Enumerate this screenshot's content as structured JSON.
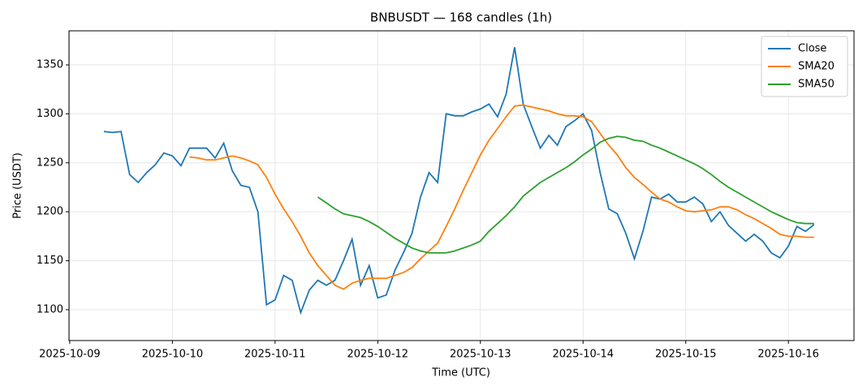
{
  "chart_data": {
    "type": "line",
    "title": "BNBUSDT — 168 candles (1h)",
    "xlabel": "Time (UTC)",
    "ylabel": "Price (USDT)",
    "x": [
      "2025-10-09 08:00",
      "2025-10-09 10:00",
      "2025-10-09 12:00",
      "2025-10-09 14:00",
      "2025-10-09 16:00",
      "2025-10-09 18:00",
      "2025-10-09 20:00",
      "2025-10-09 22:00",
      "2025-10-10 00:00",
      "2025-10-10 02:00",
      "2025-10-10 04:00",
      "2025-10-10 06:00",
      "2025-10-10 08:00",
      "2025-10-10 10:00",
      "2025-10-10 12:00",
      "2025-10-10 14:00",
      "2025-10-10 16:00",
      "2025-10-10 18:00",
      "2025-10-10 20:00",
      "2025-10-10 22:00",
      "2025-10-11 00:00",
      "2025-10-11 02:00",
      "2025-10-11 04:00",
      "2025-10-11 06:00",
      "2025-10-11 08:00",
      "2025-10-11 10:00",
      "2025-10-11 12:00",
      "2025-10-11 14:00",
      "2025-10-11 16:00",
      "2025-10-11 18:00",
      "2025-10-11 20:00",
      "2025-10-11 22:00",
      "2025-10-12 00:00",
      "2025-10-12 02:00",
      "2025-10-12 04:00",
      "2025-10-12 06:00",
      "2025-10-12 08:00",
      "2025-10-12 10:00",
      "2025-10-12 12:00",
      "2025-10-12 14:00",
      "2025-10-12 16:00",
      "2025-10-12 18:00",
      "2025-10-12 20:00",
      "2025-10-12 22:00",
      "2025-10-13 00:00",
      "2025-10-13 02:00",
      "2025-10-13 04:00",
      "2025-10-13 06:00",
      "2025-10-13 08:00",
      "2025-10-13 10:00",
      "2025-10-13 12:00",
      "2025-10-13 14:00",
      "2025-10-13 16:00",
      "2025-10-13 18:00",
      "2025-10-13 20:00",
      "2025-10-13 22:00",
      "2025-10-14 00:00",
      "2025-10-14 02:00",
      "2025-10-14 04:00",
      "2025-10-14 06:00",
      "2025-10-14 08:00",
      "2025-10-14 10:00",
      "2025-10-14 12:00",
      "2025-10-14 14:00",
      "2025-10-14 16:00",
      "2025-10-14 18:00",
      "2025-10-14 20:00",
      "2025-10-14 22:00",
      "2025-10-15 00:00",
      "2025-10-15 02:00",
      "2025-10-15 04:00",
      "2025-10-15 06:00",
      "2025-10-15 08:00",
      "2025-10-15 10:00",
      "2025-10-15 12:00",
      "2025-10-15 14:00",
      "2025-10-15 16:00",
      "2025-10-15 18:00",
      "2025-10-15 20:00",
      "2025-10-15 22:00",
      "2025-10-16 00:00",
      "2025-10-16 02:00",
      "2025-10-16 04:00",
      "2025-10-16 06:00"
    ],
    "series": [
      {
        "name": "Close",
        "color": "#1f77b4",
        "values": [
          1282,
          1281,
          1282,
          1238,
          1230,
          1240,
          1248,
          1260,
          1257,
          1247,
          1265,
          1265,
          1265,
          1255,
          1270,
          1242,
          1227,
          1225,
          1200,
          1105,
          1110,
          1135,
          1130,
          1097,
          1120,
          1130,
          1125,
          1130,
          1150,
          1172,
          1125,
          1145,
          1112,
          1115,
          1140,
          1158,
          1178,
          1215,
          1240,
          1230,
          1300,
          1298,
          1298,
          1302,
          1305,
          1310,
          1297,
          1320,
          1368,
          1310,
          1287,
          1265,
          1278,
          1268,
          1287,
          1293,
          1300,
          1283,
          1240,
          1203,
          1198,
          1178,
          1152,
          1180,
          1215,
          1213,
          1218,
          1210,
          1210,
          1215,
          1208,
          1190,
          1200,
          1186,
          1178,
          1170,
          1177,
          1170,
          1158,
          1153,
          1165,
          1185,
          1180,
          1187
        ]
      },
      {
        "name": "SMA20",
        "color": "#ff7f0e",
        "values": [
          null,
          null,
          null,
          null,
          null,
          null,
          null,
          null,
          null,
          null,
          1256,
          1255,
          1253,
          1253,
          1255,
          1257,
          1255,
          1252,
          1248,
          1235,
          1218,
          1203,
          1190,
          1175,
          1158,
          1145,
          1135,
          1125,
          1121,
          1127,
          1130,
          1132,
          1132,
          1132,
          1135,
          1138,
          1143,
          1152,
          1160,
          1168,
          1185,
          1203,
          1222,
          1240,
          1258,
          1273,
          1285,
          1297,
          1308,
          1309,
          1307,
          1305,
          1303,
          1300,
          1298,
          1298,
          1297,
          1292,
          1280,
          1268,
          1258,
          1245,
          1235,
          1228,
          1220,
          1213,
          1210,
          1205,
          1201,
          1200,
          1201,
          1202,
          1205,
          1205,
          1202,
          1197,
          1193,
          1188,
          1183,
          1177,
          1175,
          1175,
          1174,
          1174
        ]
      },
      {
        "name": "SMA50",
        "color": "#2ca02c",
        "values": [
          null,
          null,
          null,
          null,
          null,
          null,
          null,
          null,
          null,
          null,
          null,
          null,
          null,
          null,
          null,
          null,
          null,
          null,
          null,
          null,
          null,
          null,
          null,
          null,
          null,
          1215,
          1209,
          1203,
          1198,
          1196,
          1194,
          1190,
          1185,
          1179,
          1173,
          1168,
          1163,
          1160,
          1158,
          1158,
          1158,
          1160,
          1163,
          1166,
          1170,
          1180,
          1188,
          1196,
          1205,
          1216,
          1223,
          1230,
          1235,
          1240,
          1245,
          1251,
          1258,
          1264,
          1271,
          1275,
          1277,
          1276,
          1273,
          1272,
          1268,
          1265,
          1261,
          1257,
          1253,
          1249,
          1244,
          1238,
          1231,
          1225,
          1220,
          1215,
          1210,
          1205,
          1200,
          1196,
          1192,
          1189,
          1188,
          1188
        ]
      }
    ],
    "xlim": [
      "2025-10-08 23:50",
      "2025-10-16 15:20"
    ],
    "xticks": [
      "2025-10-09",
      "2025-10-10",
      "2025-10-11",
      "2025-10-12",
      "2025-10-13",
      "2025-10-14",
      "2025-10-15",
      "2025-10-16"
    ],
    "ylim": [
      1068.5,
      1384.8
    ],
    "yticks": [
      1100,
      1150,
      1200,
      1250,
      1300,
      1350
    ],
    "grid": true,
    "legend": "upper right"
  }
}
